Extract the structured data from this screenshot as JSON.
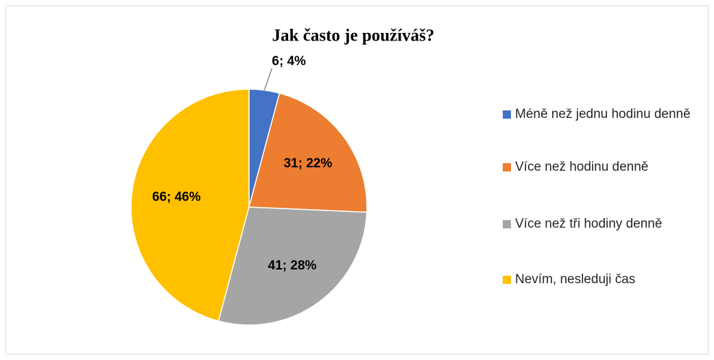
{
  "chart_data": {
    "type": "pie",
    "title": "Jak často je používáš?",
    "categories": [
      "Méně než jednu hodinu denně",
      "Více než hodinu denně",
      "Více než tři hodiny denně",
      "Nevím, nesleduji čas"
    ],
    "values": [
      6,
      31,
      41,
      66
    ],
    "value_labels": [
      "6; 4%",
      "31; 22%",
      "41; 28%",
      "66; 46%"
    ],
    "colors": [
      "#4472c4",
      "#ed7d31",
      "#a5a5a5",
      "#ffc000"
    ],
    "legend": "right"
  }
}
